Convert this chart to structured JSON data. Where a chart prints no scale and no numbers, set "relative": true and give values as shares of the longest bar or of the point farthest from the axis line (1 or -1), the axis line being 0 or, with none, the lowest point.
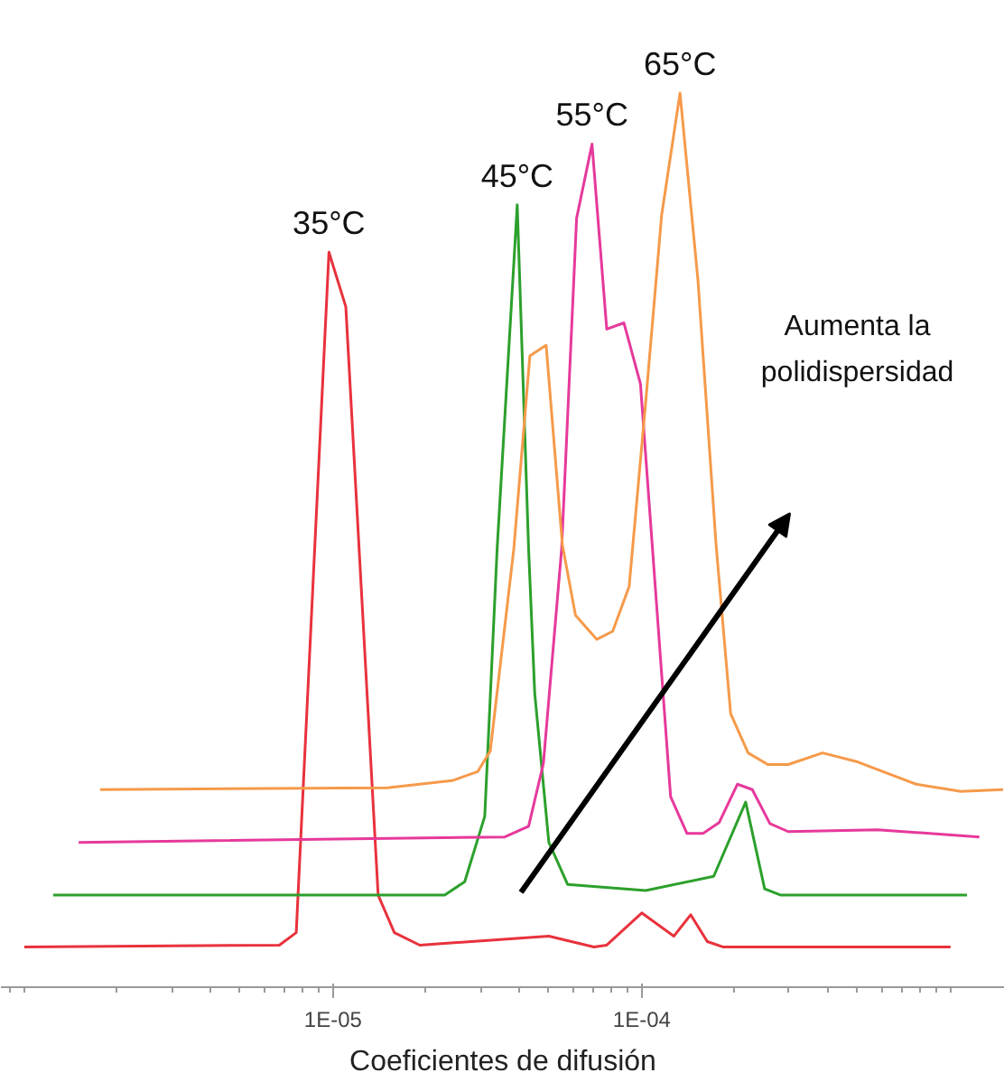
{
  "chart_data": {
    "type": "line",
    "relative": true,
    "xlabel": "Coeficientes de difusión",
    "log": "x",
    "xlim": [
      8.4e-07,
      0.0015
    ],
    "xticks": [
      {
        "value": 1e-05,
        "label": "1E-05"
      },
      {
        "value": 0.0001,
        "label": "1E-04"
      }
    ],
    "grid": false,
    "marker": "none",
    "line_style": "solid",
    "annotations": [
      "Aumenta la polidispersidad"
    ],
    "series": [
      {
        "name": "35°C",
        "color": "#e8323c",
        "x": [
          1e-06,
          6.7e-06,
          7.6e-06,
          9.7e-06,
          1.1e-05,
          1.4e-05,
          1.58e-05,
          1.91e-05,
          5e-05,
          7e-05,
          7.7e-05,
          0.0001,
          0.000127,
          0.000144,
          0.000163,
          0.000183,
          0.001
        ],
        "values": [
          0.045,
          0.047,
          0.061,
          0.822,
          0.761,
          0.103,
          0.061,
          0.047,
          0.057,
          0.045,
          0.047,
          0.083,
          0.057,
          0.081,
          0.051,
          0.045,
          0.045
        ]
      },
      {
        "name": "45°C",
        "color": "#2ca02c",
        "x": [
          1.24e-06,
          2.3e-05,
          2.67e-05,
          3.1e-05,
          3.4e-05,
          3.95e-05,
          4.3e-05,
          4.5e-05,
          5e-05,
          5.75e-05,
          0.000103,
          0.000171,
          0.000217,
          0.00025,
          0.000282,
          0.00113
        ],
        "values": [
          0.103,
          0.103,
          0.118,
          0.191,
          0.49,
          0.875,
          0.49,
          0.329,
          0.162,
          0.115,
          0.108,
          0.124,
          0.207,
          0.11,
          0.103,
          0.103
        ]
      },
      {
        "name": "55°C",
        "color": "#e6399b",
        "x": [
          1.5e-06,
          3.6e-05,
          4.3e-05,
          4.8e-05,
          5.5e-05,
          6.15e-05,
          6.9e-05,
          7.7e-05,
          8.75e-05,
          9.9e-05,
          0.000124,
          0.00014,
          0.000158,
          0.000178,
          0.000204,
          0.000228,
          0.00026,
          0.000298,
          0.00058,
          0.00124
        ],
        "values": [
          0.162,
          0.168,
          0.18,
          0.25,
          0.49,
          0.86,
          0.943,
          0.736,
          0.743,
          0.675,
          0.213,
          0.172,
          0.172,
          0.184,
          0.227,
          0.221,
          0.183,
          0.174,
          0.176,
          0.168
        ]
      },
      {
        "name": "65°C",
        "color": "#f59a4a",
        "x": [
          1.76e-06,
          1.5e-05,
          2.43e-05,
          2.94e-05,
          3.23e-05,
          3.85e-05,
          4.34e-05,
          4.9e-05,
          5.53e-05,
          6.1e-05,
          7.15e-05,
          8.05e-05,
          9.1e-05,
          0.000103,
          0.000116,
          0.000133,
          0.000152,
          0.000174,
          0.000194,
          0.000221,
          0.000256,
          0.000298,
          0.000385,
          0.0005,
          0.000775,
          0.00108,
          0.00148
        ],
        "values": [
          0.221,
          0.223,
          0.231,
          0.241,
          0.264,
          0.49,
          0.706,
          0.718,
          0.495,
          0.416,
          0.389,
          0.398,
          0.448,
          0.655,
          0.864,
          1.0,
          0.791,
          0.495,
          0.306,
          0.262,
          0.249,
          0.249,
          0.262,
          0.252,
          0.227,
          0.219,
          0.221
        ]
      }
    ]
  }
}
